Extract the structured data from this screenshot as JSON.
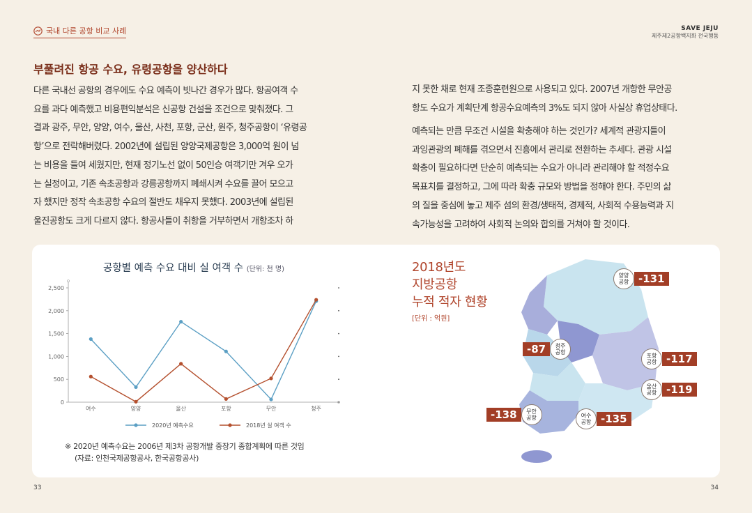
{
  "header": {
    "section_tag": "국내 다른 공항 비교 사례",
    "brand_title": "SAVE JEJU",
    "brand_sub": "제주제2공항백지화 전국행동"
  },
  "heading": "부풀려진 항공 수요, 유령공항을 양산하다",
  "left_column": {
    "lines": [
      "다른 국내선 공항의 경우에도 수요 예측이 빗나간 경우가 많다. 항공여객 수",
      "요를 과다 예측했고 비용편익분석은 신공항 건설을 조건으로 맞춰졌다. 그",
      "결과 광주, 무안, 양양, 여수, 울산, 사천, 포항, 군산, 원주, 청주공항이 ‘유령공",
      "항’으로 전락해버렸다. 2002년에 설립된 양양국제공항은 3,000억 원이 넘",
      "는 비용을 들여 세웠지만, 현재 정기노선 없이 50인승 여객기만 겨우 오가",
      "는 실정이고, 기존 속초공항과 강릉공항까지 폐쇄시켜 수요를 끌어 모으고",
      "자 했지만 정작 속초공항 수요의 절반도 채우지 못했다. 2003년에 설립된",
      "울진공항도 크게 다르지 않다. 항공사들이 취항을 거부하면서 개항조차 하"
    ]
  },
  "right_column": {
    "para1": [
      "지 못한 채로 현재 조종훈련원으로 사용되고 있다. 2007년 개항한 무안공",
      "항도 수요가 계획단계 항공수요예측의 3%도 되지 않아 사실상 휴업상태다."
    ],
    "para2": [
      "예측되는 만큼 무조건 시설을 확충해야 하는 것인가? 세계적 관광지들이",
      "과잉관광의 폐해를 겪으면서 진흥에서 관리로 전환하는 추세다. 관광 시설",
      "확충이 필요하다면 단순히 예측되는 수요가 아니라 관리해야 할 적정수요",
      "목표치를 결정하고, 그에 따라 확충 규모와 방법을 정해야 한다. 주민의 삶",
      "의 질을 중심에 놓고 제주 섬의 환경/생태적, 경제적, 사회적 수용능력과 지",
      "속가능성을 고려하여 사회적 논의와 합의를 거쳐야 할 것이다."
    ]
  },
  "chart_data": {
    "type": "line",
    "title": "공항별 예측 수요 대비 실 여객 수",
    "unit": "(단위: 천 명)",
    "categories": [
      "여수",
      "양양",
      "울산",
      "포항",
      "무안",
      "청주"
    ],
    "y_ticks": [
      "0",
      "500",
      "1,000",
      "1,500",
      "2,000",
      "2,500"
    ],
    "ylim": [
      0,
      2500
    ],
    "series": [
      {
        "name": "2020년 예측수요",
        "color": "#5b9fc4",
        "values": [
          1380,
          330,
          1760,
          1110,
          60,
          2210
        ]
      },
      {
        "name": "2018년 실 여객 수",
        "color": "#b4502e",
        "values": [
          560,
          10,
          840,
          70,
          520,
          2240
        ]
      }
    ],
    "legend_position": "bottom",
    "grid": false
  },
  "note": {
    "line1": "※ 2020년 예측수요는 2006년 제3차 공항개발 중장기 종합계획에 따른 것임",
    "line2": "(자료: 인천국제공항공사, 한국공항공사)"
  },
  "map": {
    "title_lines": [
      "2018년도",
      "지방공항",
      "누적 적자 현황"
    ],
    "unit": "[단위 : 억원]",
    "pins": [
      {
        "airport": "양양 공항",
        "value": "-131"
      },
      {
        "airport": "청주 공항",
        "value": "-87"
      },
      {
        "airport": "포항 공항",
        "value": "-117"
      },
      {
        "airport": "울산 공항",
        "value": "-119"
      },
      {
        "airport": "무안 공항",
        "value": "-138"
      },
      {
        "airport": "여수 공항",
        "value": "-135"
      }
    ]
  },
  "pages": {
    "left": "33",
    "right": "34"
  }
}
